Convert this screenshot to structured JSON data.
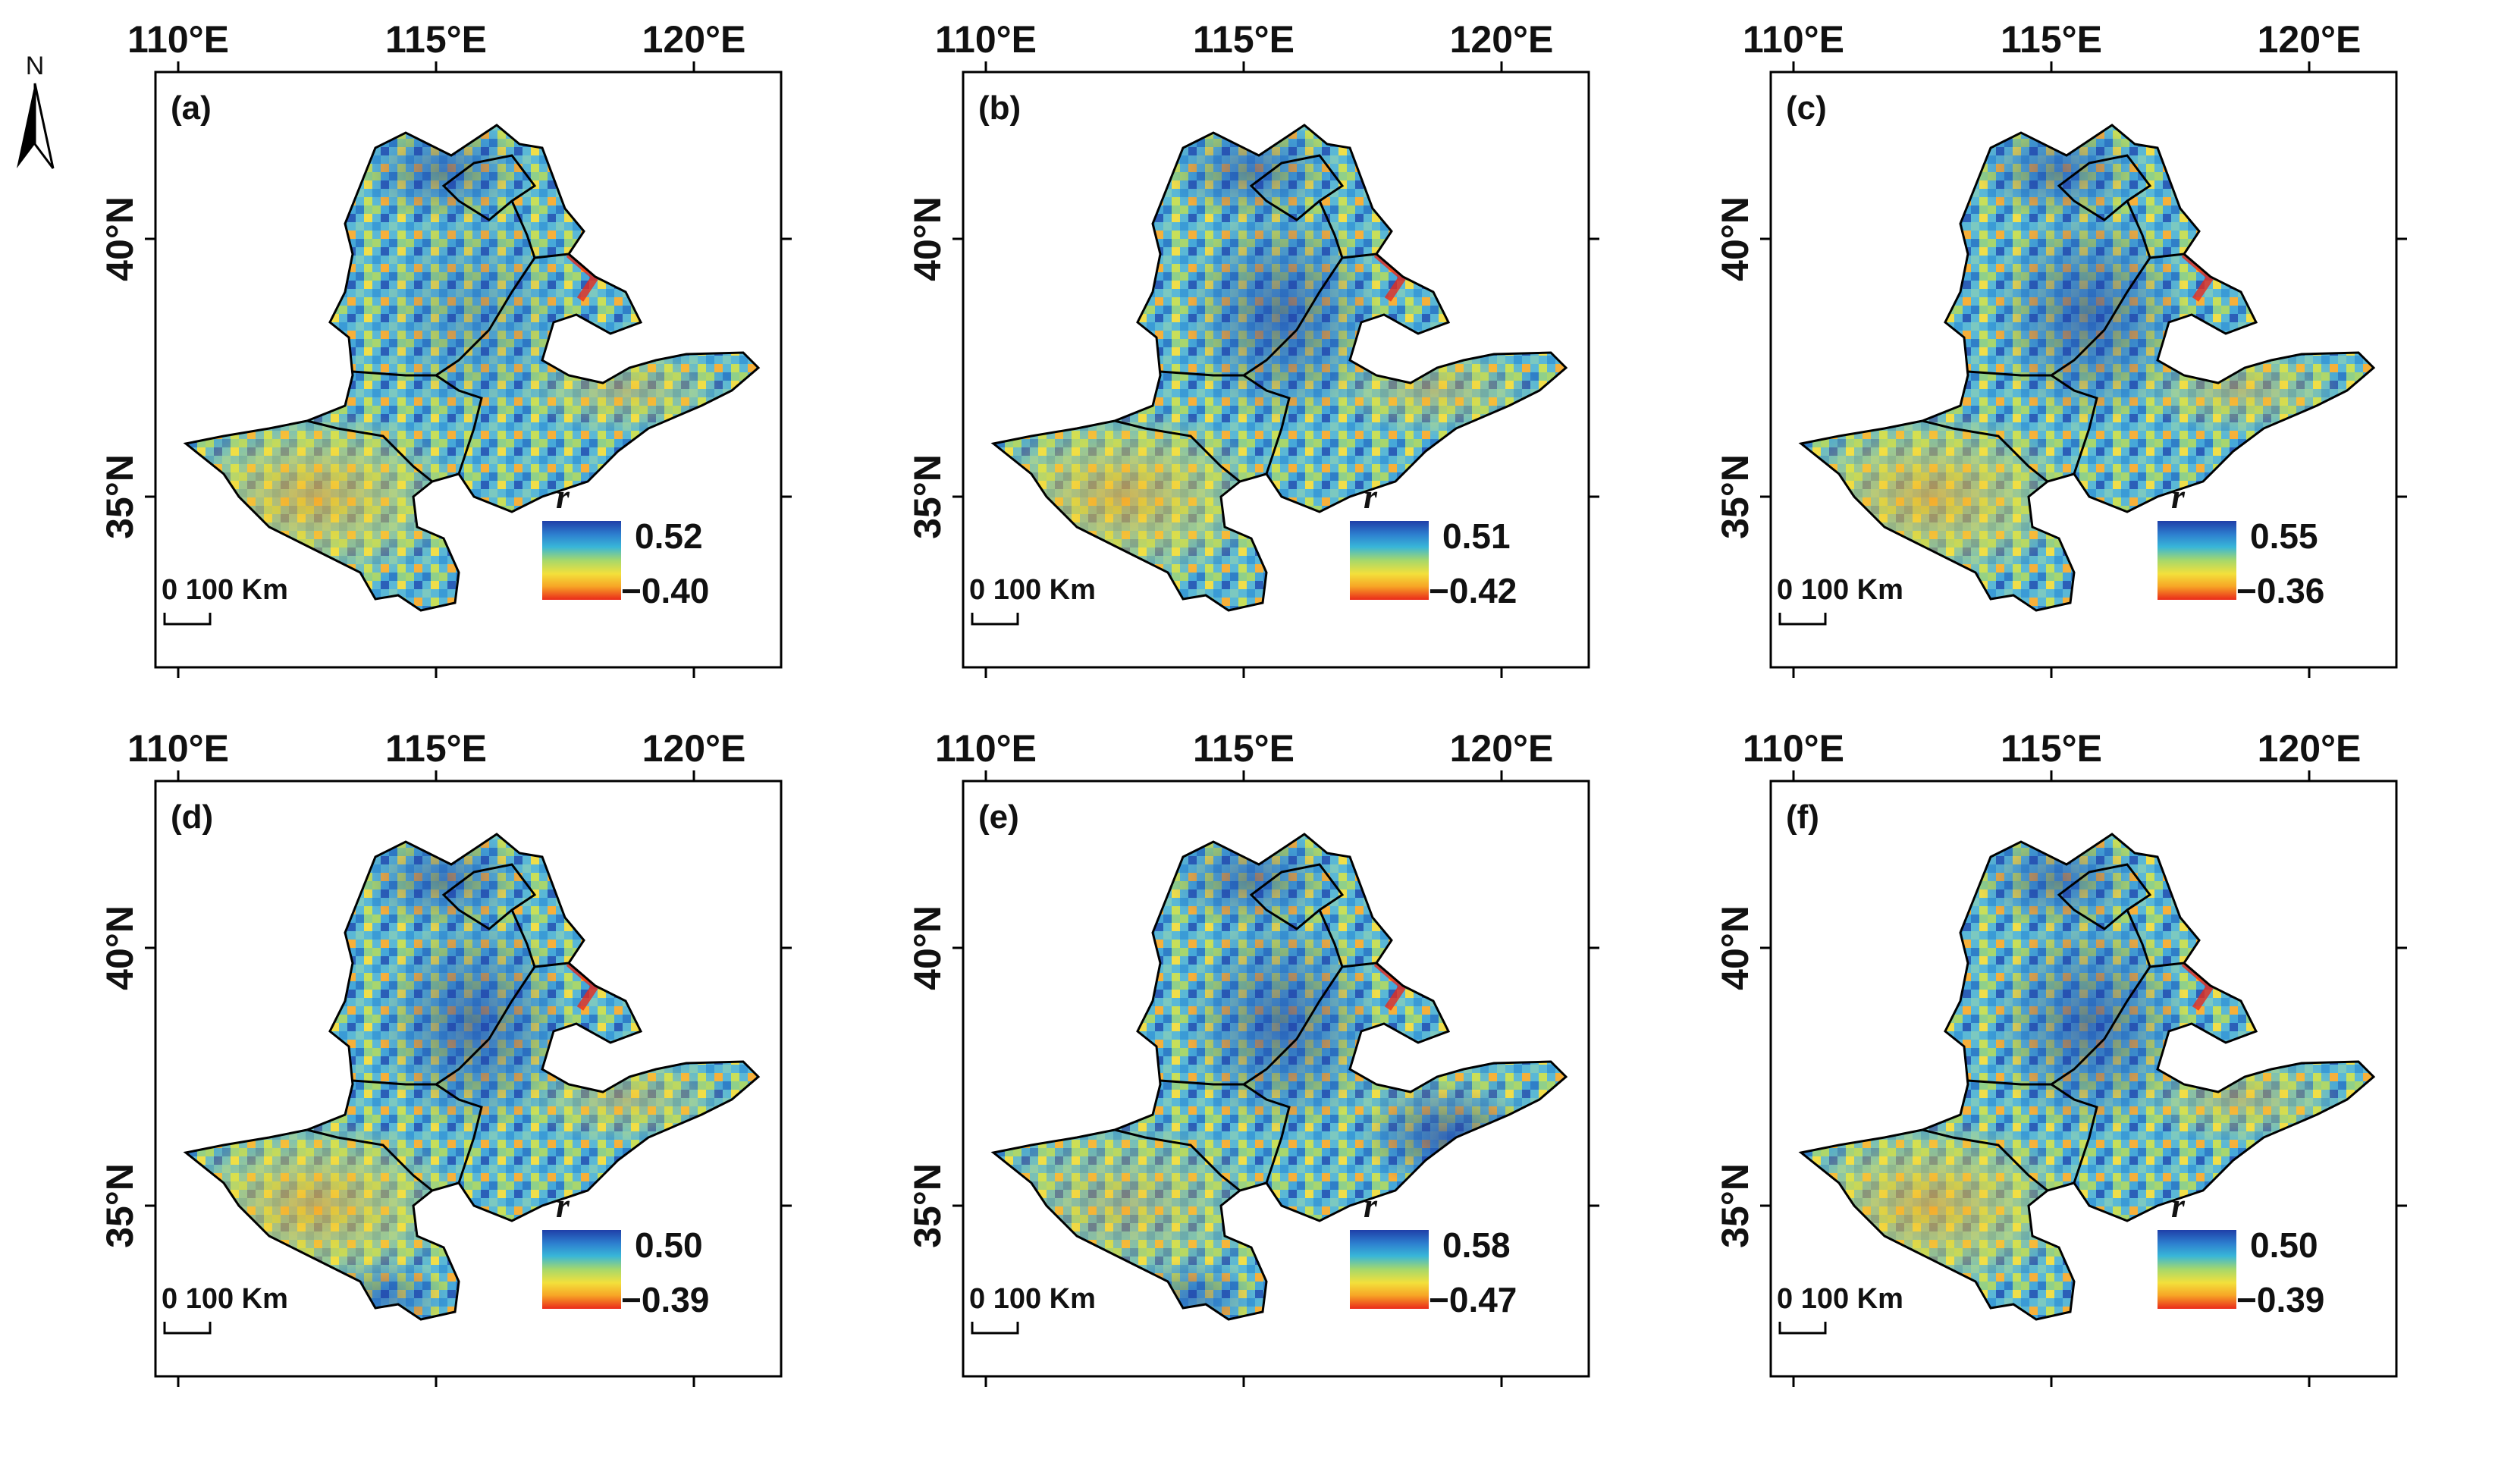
{
  "figure": {
    "north_label": "N",
    "scale_bar_label": "0 100 Km",
    "legend_variable": "r",
    "lon_ticks": [
      "110°E",
      "115°E",
      "120°E"
    ],
    "lat_ticks": [
      "40°N",
      "35°N"
    ],
    "colors": {
      "ramp": [
        "#1f3fa8",
        "#2d7fcf",
        "#38b6d8",
        "#a6d86b",
        "#f3e03b",
        "#f7a526",
        "#ea2a1a"
      ],
      "boundary": "#000000"
    }
  },
  "panels": [
    {
      "label": "(a)",
      "legend_max": "0.52",
      "legend_min": "−0.40"
    },
    {
      "label": "(b)",
      "legend_max": "0.51",
      "legend_min": "−0.42"
    },
    {
      "label": "(c)",
      "legend_max": "0.55",
      "legend_min": "−0.36"
    },
    {
      "label": "(d)",
      "legend_max": "0.50",
      "legend_min": "−0.39"
    },
    {
      "label": "(e)",
      "legend_max": "0.58",
      "legend_min": "−0.47"
    },
    {
      "label": "(f)",
      "legend_max": "0.50",
      "legend_min": "−0.39"
    }
  ]
}
